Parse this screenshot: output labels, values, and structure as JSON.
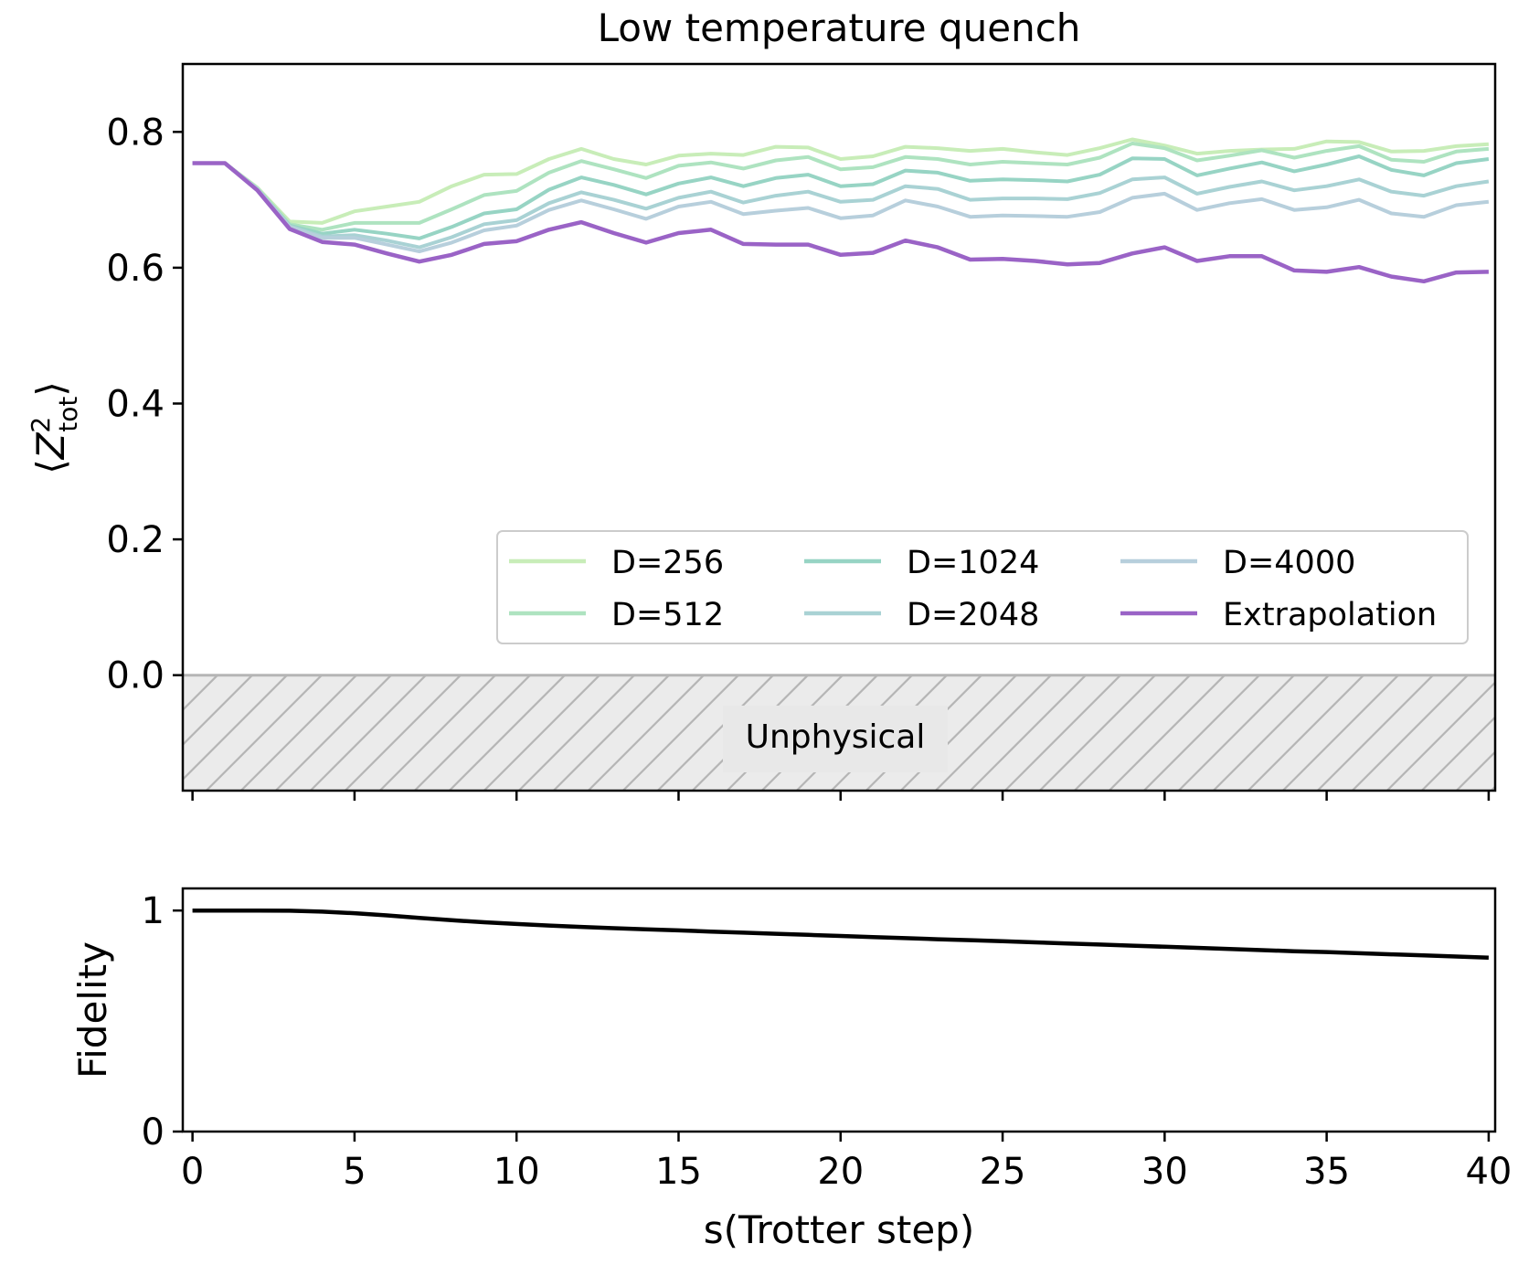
{
  "chart_data": [
    {
      "type": "line",
      "title": "Low temperature quench",
      "xlabel": "",
      "ylabel": "⟨Z²tot⟩",
      "ylabel_parts": {
        "open": "⟨",
        "base": "Z",
        "sup": "2",
        "sub": "tot",
        "close": "⟩"
      },
      "xlim": [
        -0.3,
        40.2
      ],
      "ylim": [
        -0.17,
        0.9
      ],
      "yticks": [
        0.0,
        0.2,
        0.4,
        0.6,
        0.8
      ],
      "ytick_labels": [
        "0.0",
        "0.2",
        "0.4",
        "0.6",
        "0.8"
      ],
      "xticks": [
        0,
        5,
        10,
        15,
        20,
        25,
        30,
        35,
        40
      ],
      "x": [
        0,
        1,
        2,
        3,
        4,
        5,
        6,
        7,
        8,
        9,
        10,
        11,
        12,
        13,
        14,
        15,
        16,
        17,
        18,
        19,
        20,
        21,
        22,
        23,
        24,
        25,
        26,
        27,
        28,
        29,
        30,
        31,
        32,
        33,
        34,
        35,
        36,
        37,
        38,
        39,
        40
      ],
      "series": [
        {
          "name": "D=256",
          "color": "#c8edb8",
          "values": [
            0.754,
            0.754,
            0.718,
            0.668,
            0.666,
            0.683,
            0.69,
            0.697,
            0.72,
            0.737,
            0.738,
            0.76,
            0.775,
            0.76,
            0.752,
            0.765,
            0.768,
            0.766,
            0.778,
            0.777,
            0.76,
            0.764,
            0.778,
            0.776,
            0.772,
            0.775,
            0.77,
            0.766,
            0.776,
            0.789,
            0.78,
            0.768,
            0.772,
            0.774,
            0.775,
            0.786,
            0.785,
            0.771,
            0.772,
            0.779,
            0.782
          ]
        },
        {
          "name": "D=512",
          "color": "#aee3c0",
          "values": [
            0.754,
            0.754,
            0.717,
            0.664,
            0.656,
            0.666,
            0.666,
            0.666,
            0.686,
            0.707,
            0.713,
            0.74,
            0.757,
            0.745,
            0.732,
            0.75,
            0.755,
            0.746,
            0.758,
            0.763,
            0.745,
            0.748,
            0.763,
            0.76,
            0.752,
            0.756,
            0.754,
            0.752,
            0.762,
            0.783,
            0.776,
            0.758,
            0.765,
            0.773,
            0.762,
            0.772,
            0.779,
            0.759,
            0.756,
            0.771,
            0.775
          ]
        },
        {
          "name": "D=1024",
          "color": "#97d4c4",
          "values": [
            0.754,
            0.754,
            0.716,
            0.662,
            0.65,
            0.656,
            0.65,
            0.643,
            0.66,
            0.68,
            0.686,
            0.715,
            0.733,
            0.722,
            0.708,
            0.724,
            0.733,
            0.72,
            0.732,
            0.737,
            0.72,
            0.723,
            0.743,
            0.74,
            0.728,
            0.73,
            0.729,
            0.727,
            0.737,
            0.761,
            0.76,
            0.736,
            0.746,
            0.755,
            0.742,
            0.752,
            0.764,
            0.744,
            0.736,
            0.754,
            0.76
          ]
        },
        {
          "name": "D=2048",
          "color": "#a9d2d4",
          "values": [
            0.754,
            0.754,
            0.716,
            0.661,
            0.646,
            0.648,
            0.64,
            0.63,
            0.645,
            0.664,
            0.67,
            0.695,
            0.711,
            0.7,
            0.687,
            0.703,
            0.712,
            0.696,
            0.706,
            0.712,
            0.697,
            0.7,
            0.72,
            0.716,
            0.7,
            0.702,
            0.702,
            0.701,
            0.71,
            0.73,
            0.733,
            0.709,
            0.719,
            0.727,
            0.714,
            0.72,
            0.73,
            0.712,
            0.706,
            0.72,
            0.727
          ]
        },
        {
          "name": "D=4000",
          "color": "#b7cfdc",
          "values": [
            0.754,
            0.754,
            0.716,
            0.66,
            0.644,
            0.644,
            0.634,
            0.624,
            0.637,
            0.655,
            0.662,
            0.685,
            0.699,
            0.686,
            0.672,
            0.69,
            0.697,
            0.679,
            0.684,
            0.688,
            0.673,
            0.677,
            0.699,
            0.69,
            0.675,
            0.677,
            0.676,
            0.675,
            0.682,
            0.703,
            0.709,
            0.685,
            0.695,
            0.701,
            0.685,
            0.689,
            0.7,
            0.68,
            0.675,
            0.692,
            0.697
          ]
        },
        {
          "name": "Extrapolation",
          "color": "#9a63c6",
          "values": [
            0.754,
            0.754,
            0.714,
            0.657,
            0.638,
            0.634,
            0.621,
            0.609,
            0.619,
            0.635,
            0.639,
            0.656,
            0.667,
            0.651,
            0.637,
            0.651,
            0.656,
            0.635,
            0.634,
            0.634,
            0.619,
            0.622,
            0.64,
            0.63,
            0.612,
            0.613,
            0.61,
            0.605,
            0.607,
            0.621,
            0.63,
            0.61,
            0.617,
            0.617,
            0.596,
            0.594,
            0.601,
            0.587,
            0.58,
            0.593,
            0.594
          ]
        }
      ],
      "legend": {
        "location": "lower right",
        "ncol": 3,
        "order": [
          "D=256",
          "D=512",
          "D=1024",
          "D=2048",
          "D=4000",
          "Extrapolation"
        ]
      },
      "shaded_region": {
        "label": "Unphysical",
        "y_range": [
          -0.17,
          0.0
        ],
        "hatch": "diagonal",
        "color": "#ebebeb",
        "line_color": "#b5b5b5"
      }
    },
    {
      "type": "line",
      "title": "",
      "xlabel": "s(Trotter step)",
      "ylabel": "Fidelity",
      "xlim": [
        -0.3,
        40.2
      ],
      "ylim": [
        0,
        1.1
      ],
      "yticks": [
        0,
        1
      ],
      "ytick_labels": [
        "0",
        "1"
      ],
      "xticks": [
        0,
        5,
        10,
        15,
        20,
        25,
        30,
        35,
        40
      ],
      "xtick_labels": [
        "0",
        "5",
        "10",
        "15",
        "20",
        "25",
        "30",
        "35",
        "40"
      ],
      "x": [
        0,
        1,
        2,
        3,
        4,
        5,
        6,
        7,
        8,
        9,
        10,
        11,
        12,
        13,
        14,
        15,
        16,
        17,
        18,
        19,
        20,
        21,
        22,
        23,
        24,
        25,
        26,
        27,
        28,
        29,
        30,
        31,
        32,
        33,
        34,
        35,
        36,
        37,
        38,
        39,
        40
      ],
      "series": [
        {
          "name": "Fidelity",
          "color": "#000000",
          "values": [
            1.0,
            1.0,
            1.0,
            0.999,
            0.995,
            0.988,
            0.978,
            0.967,
            0.956,
            0.947,
            0.939,
            0.932,
            0.926,
            0.92,
            0.915,
            0.91,
            0.905,
            0.9,
            0.895,
            0.89,
            0.885,
            0.88,
            0.875,
            0.87,
            0.866,
            0.861,
            0.856,
            0.851,
            0.846,
            0.841,
            0.836,
            0.831,
            0.826,
            0.821,
            0.816,
            0.812,
            0.807,
            0.802,
            0.797,
            0.792,
            0.787
          ]
        }
      ]
    }
  ]
}
